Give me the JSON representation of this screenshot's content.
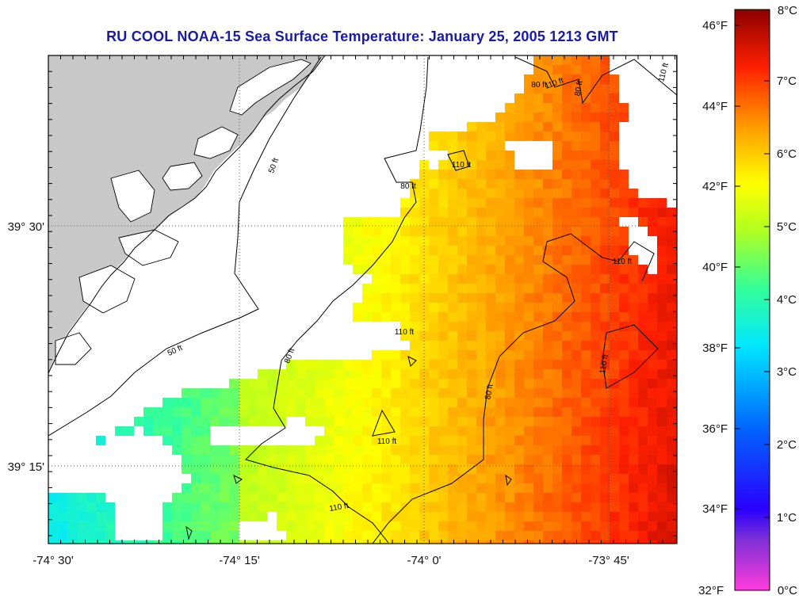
{
  "title": "RU COOL  NOAA-15  Sea Surface Temperature:  January 25, 2005 1213 GMT",
  "axes": {
    "x_ticks": [
      "-74° 30'",
      "-74° 15'",
      "-74° 0'",
      "-73° 45'"
    ],
    "y_ticks": [
      "39° 30'",
      "39° 15'"
    ]
  },
  "contour_labels": [
    "110 ft",
    "80 ft",
    "110 ft",
    "110 ft",
    "80 ft",
    "110 ft",
    "50 ft",
    "110 ft",
    "80 ft",
    "80 ft",
    "50 ft",
    "110 ft",
    "110 ft",
    "110 ft",
    "80 ft"
  ],
  "colorbar": {
    "fahrenheit": [
      "46°F",
      "44°F",
      "42°F",
      "40°F",
      "38°F",
      "36°F",
      "34°F",
      "32°F"
    ],
    "celsius": [
      "8°C",
      "7°C",
      "6°C",
      "5°C",
      "4°C",
      "3°C",
      "2°C",
      "1°C",
      "0°C"
    ]
  },
  "colors": {
    "land": "#c8c8c8",
    "title": "#1a1aa8",
    "scale": [
      "#ff3cdc",
      "#7a2fd6",
      "#2a00ff",
      "#0066ff",
      "#00e6ff",
      "#33ff99",
      "#b0ff20",
      "#ffff00",
      "#ff9a00",
      "#ff2000",
      "#8c0000"
    ]
  }
}
